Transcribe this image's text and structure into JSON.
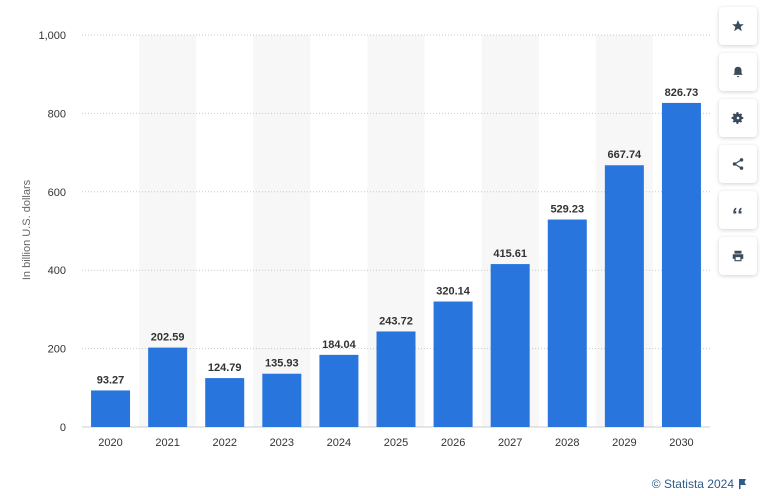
{
  "chart_data": {
    "type": "bar",
    "categories": [
      "2020",
      "2021",
      "2022",
      "2023",
      "2024",
      "2025",
      "2026",
      "2027",
      "2028",
      "2029",
      "2030"
    ],
    "values": [
      93.27,
      202.59,
      124.79,
      135.93,
      184.04,
      243.72,
      320.14,
      415.61,
      529.23,
      667.74,
      826.73
    ],
    "value_labels": [
      "93.27",
      "202.59",
      "124.79",
      "135.93",
      "184.04",
      "243.72",
      "320.14",
      "415.61",
      "529.23",
      "667.74",
      "826.73"
    ],
    "ylabel": "In billion U.S. dollars",
    "ylim": [
      0,
      1000
    ],
    "yticks": [
      0,
      200,
      400,
      600,
      800,
      1000
    ],
    "ytick_labels": [
      "0",
      "200",
      "400",
      "600",
      "800",
      "1,000"
    ],
    "grid": true,
    "bar_color": "#2876dd",
    "band_color": "#f7f7f7"
  },
  "toolbar": {
    "buttons": [
      {
        "name": "favorite-button",
        "icon": "star-icon"
      },
      {
        "name": "notification-button",
        "icon": "bell-icon"
      },
      {
        "name": "settings-button",
        "icon": "gear-icon"
      },
      {
        "name": "share-button",
        "icon": "share-icon"
      },
      {
        "name": "cite-button",
        "icon": "quote-icon"
      },
      {
        "name": "print-button",
        "icon": "printer-icon"
      }
    ]
  },
  "credit": {
    "text": "© Statista 2024",
    "icon": "flag-icon"
  }
}
